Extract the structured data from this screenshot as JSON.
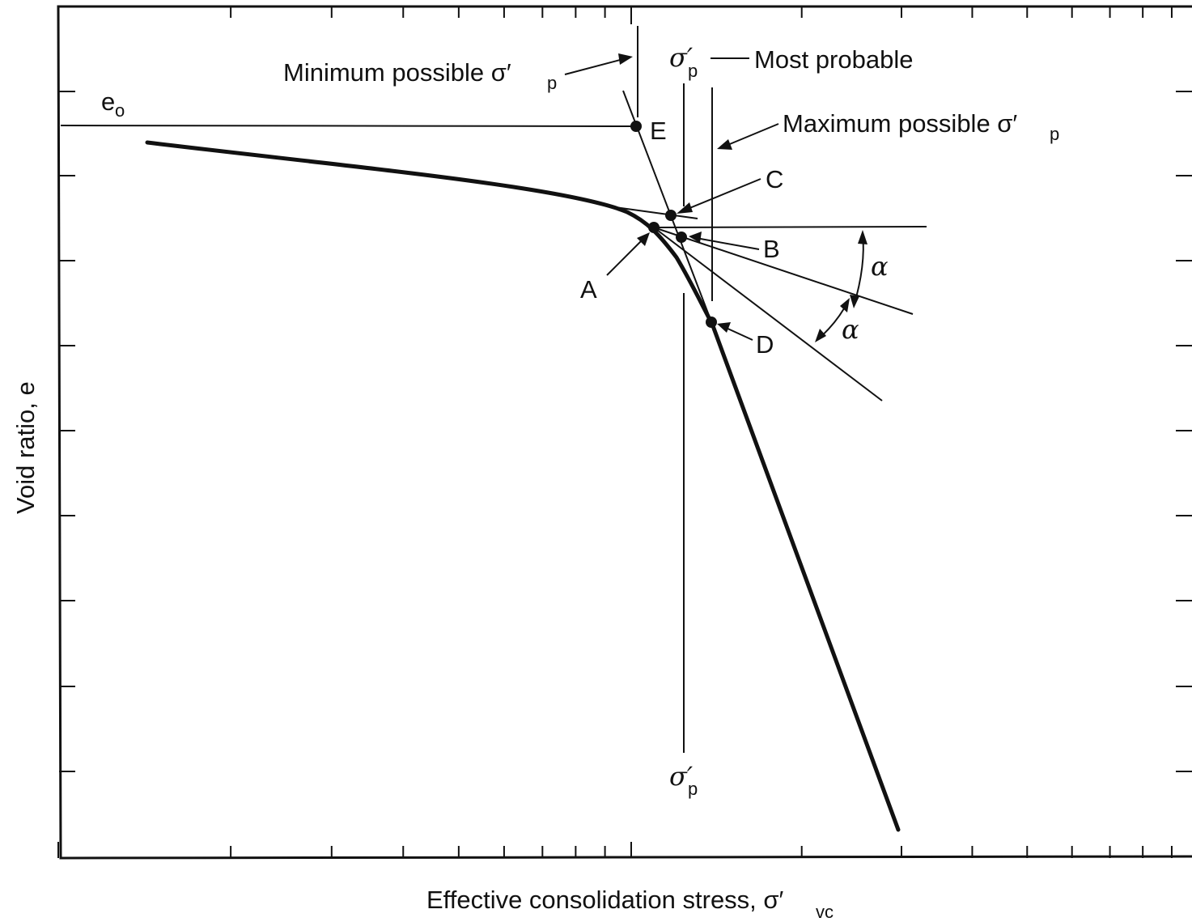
{
  "axes": {
    "y_label": "Void ratio, e",
    "x_label": "Effective consolidation stress, σ′",
    "x_label_sub": "vc",
    "e0_label": "e",
    "e0_sub": "o"
  },
  "annotations": {
    "min_label": "Minimum possible σ′",
    "max_label": "Maximum possible σ′",
    "most_probable": "Most probable",
    "sigma_p": "σ′",
    "sub_p": "p",
    "alpha": "α"
  },
  "points": {
    "A": "A",
    "B": "B",
    "C": "C",
    "D": "D",
    "E": "E"
  }
}
